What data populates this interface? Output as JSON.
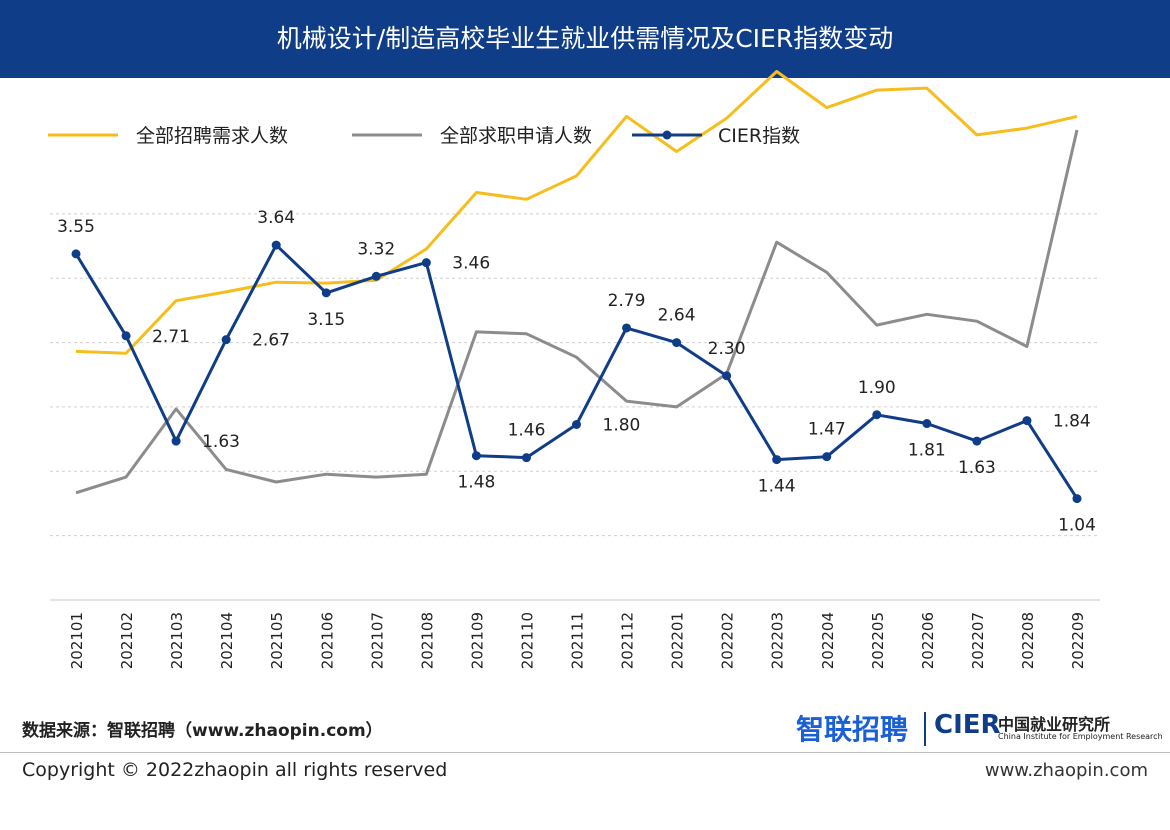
{
  "header": {
    "title": "机械设计/制造高校毕业生就业供需情况及CIER指数变动"
  },
  "chart_data": {
    "type": "line",
    "x": [
      "202101",
      "202102",
      "202103",
      "202104",
      "202105",
      "202106",
      "202107",
      "202108",
      "202109",
      "202110",
      "202111",
      "202112",
      "202201",
      "202202",
      "202203",
      "202204",
      "202205",
      "202206",
      "202207",
      "202208",
      "202209"
    ],
    "legend_position": "top-left",
    "grid": true,
    "series": [
      {
        "name": "全部招聘需求人数",
        "color": "#f5be1c",
        "marker": false,
        "values": [
          2.55,
          2.53,
          3.07,
          3.16,
          3.26,
          3.25,
          3.28,
          3.6,
          4.18,
          4.11,
          4.35,
          4.96,
          4.6,
          4.94,
          5.42,
          5.05,
          5.23,
          5.25,
          4.77,
          4.84,
          4.96
        ]
      },
      {
        "name": "全部求职申请人数",
        "color": "#8c8c8c",
        "marker": false,
        "values": [
          1.1,
          1.26,
          1.96,
          1.34,
          1.21,
          1.29,
          1.26,
          1.29,
          2.75,
          2.73,
          2.49,
          2.04,
          1.98,
          2.32,
          3.67,
          3.36,
          2.82,
          2.93,
          2.86,
          2.6,
          4.82
        ]
      },
      {
        "name": "CIER指数",
        "color": "#103d87",
        "marker": true,
        "values": [
          3.55,
          2.71,
          1.63,
          2.67,
          3.64,
          3.15,
          3.32,
          3.46,
          1.48,
          1.46,
          1.8,
          2.79,
          2.64,
          2.3,
          1.44,
          1.47,
          1.9,
          1.81,
          1.63,
          1.84,
          1.04
        ],
        "labels": [
          "3.55",
          "2.71",
          "1.63",
          "2.67",
          "3.64",
          "3.15",
          "3.32",
          "3.46",
          "1.48",
          "1.46",
          "1.80",
          "2.79",
          "2.64",
          "2.30",
          "1.44",
          "1.47",
          "1.90",
          "1.81",
          "1.63",
          "1.84",
          "1.04"
        ]
      }
    ]
  },
  "footer": {
    "source": "数据来源：智联招聘（www.zhaopin.com）",
    "copyright": "Copyright ©  2022zhaopin all rights reserved",
    "site": "www.zhaopin.com"
  },
  "logos": {
    "zhilian": "智联招聘",
    "cier": "CIER",
    "cier_cn": "中国就业研究所",
    "cier_en": "China Institute for Employment Research"
  }
}
